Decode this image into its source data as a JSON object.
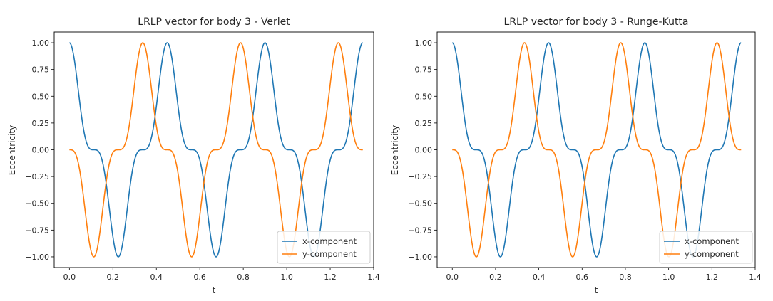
{
  "chart_data": [
    {
      "type": "line",
      "title": "LRLP vector for body 3 - Verlet",
      "xlabel": "t",
      "ylabel": "Eccentricity",
      "xlim": [
        -0.07,
        1.4
      ],
      "ylim": [
        -1.1,
        1.1
      ],
      "xticks": [
        0.0,
        0.2,
        0.4,
        0.6,
        0.8,
        1.0,
        1.2,
        1.4
      ],
      "xtick_labels": [
        "0.0",
        "0.2",
        "0.4",
        "0.6",
        "0.8",
        "1.0",
        "1.2",
        "1.4"
      ],
      "yticks": [
        1.0,
        0.75,
        0.5,
        0.25,
        0.0,
        -0.25,
        -0.5,
        -0.75,
        -1.0
      ],
      "ytick_labels": [
        "1.00",
        "0.75",
        "0.50",
        "0.25",
        "0.00",
        "−0.25",
        "−0.50",
        "−0.75",
        "−1.00"
      ],
      "grid": false,
      "legend": "lower-right",
      "x_range": [
        0.0,
        1.35
      ],
      "period": 0.45,
      "series": [
        {
          "name": "x-component",
          "color": "#1f77b4",
          "x": [
            0.0,
            0.05,
            0.1,
            0.13,
            0.17,
            0.225,
            0.28,
            0.32,
            0.35,
            0.4,
            0.45,
            0.5,
            0.55,
            0.58,
            0.62,
            0.675,
            0.73,
            0.77,
            0.8,
            0.85,
            0.9,
            0.95,
            1.0,
            1.03,
            1.07,
            1.125,
            1.18,
            1.22,
            1.25,
            1.3,
            1.35
          ],
          "y": [
            1.0,
            0.62,
            0.06,
            0.0,
            -0.25,
            -1.0,
            -0.25,
            0.0,
            0.06,
            0.62,
            1.0,
            0.62,
            0.06,
            0.0,
            -0.25,
            -1.0,
            -0.25,
            0.0,
            0.06,
            0.62,
            1.0,
            0.62,
            0.06,
            0.0,
            -0.25,
            -1.0,
            -0.25,
            0.0,
            0.06,
            0.62,
            1.0
          ]
        },
        {
          "name": "y-component",
          "color": "#ff7f0e",
          "x": [
            0.0,
            0.05,
            0.112,
            0.17,
            0.225,
            0.28,
            0.338,
            0.4,
            0.45,
            0.5,
            0.562,
            0.62,
            0.675,
            0.73,
            0.788,
            0.85,
            0.9,
            0.95,
            1.012,
            1.07,
            1.125,
            1.18,
            1.238,
            1.3,
            1.35
          ],
          "y": [
            0.0,
            -0.06,
            -1.0,
            -0.06,
            0.0,
            0.06,
            1.0,
            0.06,
            0.0,
            -0.06,
            -1.0,
            -0.06,
            0.0,
            0.06,
            1.0,
            0.06,
            0.0,
            -0.06,
            -1.0,
            -0.06,
            0.0,
            0.06,
            1.0,
            0.06,
            0.0
          ]
        }
      ]
    },
    {
      "type": "line",
      "title": "LRLP vector for body 3 - Runge-Kutta",
      "xlabel": "t",
      "ylabel": "Eccentricity",
      "xlim": [
        -0.07,
        1.4
      ],
      "ylim": [
        -1.1,
        1.1
      ],
      "xticks": [
        0.0,
        0.2,
        0.4,
        0.6,
        0.8,
        1.0,
        1.2,
        1.4
      ],
      "xtick_labels": [
        "0.0",
        "0.2",
        "0.4",
        "0.6",
        "0.8",
        "1.0",
        "1.2",
        "1.4"
      ],
      "yticks": [
        1.0,
        0.75,
        0.5,
        0.25,
        0.0,
        -0.25,
        -0.5,
        -0.75,
        -1.0
      ],
      "ytick_labels": [
        "1.00",
        "0.75",
        "0.50",
        "0.25",
        "0.00",
        "−0.25",
        "−0.50",
        "−0.75",
        "−1.00"
      ],
      "grid": false,
      "legend": "lower-right",
      "x_range": [
        0.0,
        1.335
      ],
      "period": 0.445,
      "series": [
        {
          "name": "x-component",
          "color": "#1f77b4",
          "x": [
            0.0,
            0.05,
            0.1,
            0.13,
            0.17,
            0.2225,
            0.275,
            0.315,
            0.345,
            0.395,
            0.445,
            0.495,
            0.545,
            0.575,
            0.615,
            0.6675,
            0.72,
            0.76,
            0.79,
            0.84,
            0.89,
            0.94,
            0.99,
            1.02,
            1.06,
            1.1125,
            1.165,
            1.205,
            1.235,
            1.285,
            1.335
          ],
          "y": [
            1.0,
            0.62,
            0.06,
            0.0,
            -0.25,
            -1.0,
            -0.25,
            0.0,
            0.06,
            0.62,
            1.0,
            0.62,
            0.06,
            0.0,
            -0.25,
            -1.0,
            -0.25,
            0.0,
            0.06,
            0.62,
            1.0,
            0.62,
            0.06,
            0.0,
            -0.25,
            -1.0,
            -0.25,
            0.0,
            0.06,
            0.62,
            1.0
          ]
        },
        {
          "name": "y-component",
          "color": "#ff7f0e",
          "x": [
            0.0,
            0.05,
            0.111,
            0.17,
            0.2225,
            0.275,
            0.334,
            0.395,
            0.445,
            0.495,
            0.556,
            0.615,
            0.6675,
            0.72,
            0.779,
            0.84,
            0.89,
            0.94,
            1.001,
            1.06,
            1.1125,
            1.165,
            1.224,
            1.285,
            1.335
          ],
          "y": [
            0.0,
            -0.06,
            -1.0,
            -0.06,
            0.0,
            0.06,
            1.0,
            0.06,
            0.0,
            -0.06,
            -1.0,
            -0.06,
            0.0,
            0.06,
            1.0,
            0.06,
            0.0,
            -0.06,
            -1.0,
            -0.06,
            0.0,
            0.06,
            1.0,
            0.06,
            0.0
          ]
        }
      ]
    }
  ]
}
